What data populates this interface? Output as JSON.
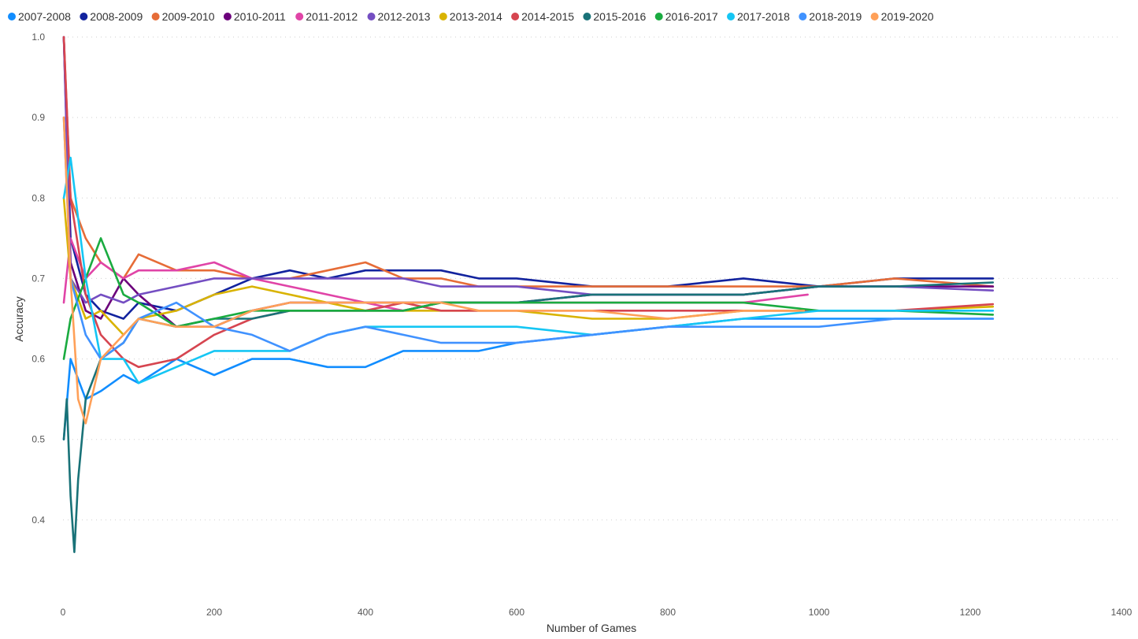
{
  "chart_data": {
    "type": "line",
    "xlabel": "Number of Games",
    "ylabel": "Accuracy",
    "xlim": [
      0,
      1400
    ],
    "ylim": [
      0.3,
      1.0
    ],
    "xticks": [
      0,
      200,
      400,
      600,
      800,
      1000,
      1200,
      1400
    ],
    "yticks": [
      0.4,
      0.5,
      0.6,
      0.7,
      0.8,
      0.9,
      1.0
    ],
    "ytick_labels": [
      "0.4",
      "0.5",
      "0.6",
      "0.7",
      "0.8",
      "0.9",
      "1.0"
    ],
    "grid": "horizontal-dotted",
    "legend_position": "top-left",
    "series": [
      {
        "name": "2007-2008",
        "color": "#118DFF",
        "x": [
          1,
          10,
          30,
          50,
          80,
          100,
          150,
          200,
          250,
          300,
          350,
          400,
          450,
          500,
          550,
          600,
          700,
          800,
          900,
          1000,
          1100,
          1230
        ],
        "y": [
          0.5,
          0.6,
          0.55,
          0.56,
          0.58,
          0.57,
          0.6,
          0.58,
          0.6,
          0.6,
          0.59,
          0.59,
          0.61,
          0.61,
          0.61,
          0.62,
          0.63,
          0.64,
          0.65,
          0.65,
          0.65,
          0.65
        ]
      },
      {
        "name": "2008-2009",
        "color": "#12239E",
        "x": [
          1,
          10,
          30,
          50,
          80,
          100,
          150,
          200,
          250,
          300,
          350,
          400,
          450,
          500,
          550,
          600,
          700,
          800,
          900,
          1000,
          1100,
          1230
        ],
        "y": [
          1.0,
          0.75,
          0.68,
          0.66,
          0.65,
          0.67,
          0.66,
          0.68,
          0.7,
          0.71,
          0.7,
          0.71,
          0.71,
          0.71,
          0.7,
          0.7,
          0.69,
          0.69,
          0.7,
          0.69,
          0.7,
          0.7
        ]
      },
      {
        "name": "2009-2010",
        "color": "#E66C37",
        "x": [
          1,
          10,
          30,
          50,
          80,
          100,
          150,
          200,
          250,
          300,
          350,
          400,
          450,
          500,
          550,
          600,
          700,
          800,
          900,
          1000,
          1100,
          1230
        ],
        "y": [
          1.0,
          0.8,
          0.75,
          0.72,
          0.7,
          0.73,
          0.71,
          0.71,
          0.7,
          0.7,
          0.71,
          0.72,
          0.7,
          0.7,
          0.69,
          0.69,
          0.69,
          0.69,
          0.69,
          0.69,
          0.7,
          0.69
        ]
      },
      {
        "name": "2010-2011",
        "color": "#6B007B",
        "x": [
          1,
          10,
          30,
          50,
          80,
          100,
          150,
          200,
          250,
          300,
          350,
          400,
          450,
          500,
          550,
          600,
          700,
          800,
          900,
          1000,
          1100,
          1230
        ],
        "y": [
          1.0,
          0.72,
          0.66,
          0.65,
          0.7,
          0.68,
          0.64,
          0.64,
          0.66,
          0.67,
          0.67,
          0.67,
          0.67,
          0.67,
          0.67,
          0.67,
          0.68,
          0.68,
          0.68,
          0.69,
          0.69,
          0.69
        ]
      },
      {
        "name": "2011-2012",
        "color": "#E044A7",
        "x": [
          1,
          10,
          30,
          50,
          80,
          100,
          150,
          200,
          250,
          300,
          350,
          400,
          450,
          500,
          550,
          600,
          700,
          800,
          900,
          985
        ],
        "y": [
          0.67,
          0.75,
          0.7,
          0.72,
          0.7,
          0.71,
          0.71,
          0.72,
          0.7,
          0.69,
          0.68,
          0.67,
          0.66,
          0.67,
          0.67,
          0.67,
          0.67,
          0.67,
          0.67,
          0.68
        ]
      },
      {
        "name": "2012-2013",
        "color": "#744EC2",
        "x": [
          1,
          10,
          30,
          50,
          80,
          100,
          150,
          200,
          250,
          300,
          350,
          400,
          450,
          500,
          550,
          600,
          700,
          800,
          900,
          1000,
          1100,
          1230
        ],
        "y": [
          1.0,
          0.7,
          0.67,
          0.68,
          0.67,
          0.68,
          0.69,
          0.7,
          0.7,
          0.7,
          0.7,
          0.7,
          0.7,
          0.69,
          0.69,
          0.69,
          0.68,
          0.68,
          0.68,
          0.69,
          0.69,
          0.685
        ]
      },
      {
        "name": "2013-2014",
        "color": "#D9B300",
        "x": [
          1,
          10,
          30,
          50,
          80,
          100,
          150,
          200,
          250,
          300,
          350,
          400,
          450,
          500,
          550,
          600,
          700,
          800,
          900,
          1000,
          1100,
          1230
        ],
        "y": [
          0.8,
          0.7,
          0.65,
          0.66,
          0.63,
          0.65,
          0.66,
          0.68,
          0.69,
          0.68,
          0.67,
          0.66,
          0.66,
          0.66,
          0.66,
          0.66,
          0.65,
          0.65,
          0.66,
          0.66,
          0.66,
          0.665
        ]
      },
      {
        "name": "2014-2015",
        "color": "#D64550",
        "x": [
          1,
          10,
          30,
          50,
          80,
          100,
          150,
          200,
          250,
          300,
          350,
          400,
          450,
          500,
          550,
          600,
          700,
          800,
          900,
          1000,
          1100,
          1230
        ],
        "y": [
          1.0,
          0.8,
          0.68,
          0.63,
          0.6,
          0.59,
          0.6,
          0.63,
          0.65,
          0.66,
          0.66,
          0.66,
          0.67,
          0.66,
          0.66,
          0.66,
          0.66,
          0.66,
          0.66,
          0.66,
          0.66,
          0.668
        ]
      },
      {
        "name": "2015-2016",
        "color": "#197278",
        "x": [
          1,
          5,
          10,
          15,
          20,
          30,
          50,
          80,
          100,
          150,
          200,
          250,
          300,
          350,
          400,
          450,
          500,
          550,
          600,
          700,
          800,
          900,
          1000,
          1100,
          1230
        ],
        "y": [
          0.5,
          0.55,
          0.43,
          0.36,
          0.45,
          0.55,
          0.6,
          0.62,
          0.65,
          0.64,
          0.65,
          0.65,
          0.66,
          0.66,
          0.66,
          0.66,
          0.67,
          0.67,
          0.67,
          0.68,
          0.68,
          0.68,
          0.69,
          0.69,
          0.695
        ]
      },
      {
        "name": "2016-2017",
        "color": "#1AAB40",
        "x": [
          1,
          10,
          30,
          50,
          80,
          100,
          150,
          200,
          250,
          300,
          350,
          400,
          450,
          500,
          550,
          600,
          700,
          800,
          900,
          1000,
          1100,
          1230
        ],
        "y": [
          0.6,
          0.65,
          0.7,
          0.75,
          0.68,
          0.67,
          0.64,
          0.65,
          0.66,
          0.66,
          0.66,
          0.66,
          0.66,
          0.67,
          0.67,
          0.67,
          0.67,
          0.67,
          0.67,
          0.66,
          0.66,
          0.655
        ]
      },
      {
        "name": "2017-2018",
        "color": "#15C6F4",
        "x": [
          1,
          10,
          30,
          50,
          80,
          100,
          150,
          200,
          250,
          300,
          350,
          400,
          450,
          500,
          550,
          600,
          700,
          800,
          900,
          1000,
          1100,
          1230
        ],
        "y": [
          0.8,
          0.85,
          0.7,
          0.6,
          0.6,
          0.57,
          0.59,
          0.61,
          0.61,
          0.61,
          0.63,
          0.64,
          0.64,
          0.64,
          0.64,
          0.64,
          0.63,
          0.64,
          0.65,
          0.66,
          0.66,
          0.66
        ]
      },
      {
        "name": "2018-2019",
        "color": "#4092FF",
        "x": [
          1,
          10,
          30,
          50,
          80,
          100,
          150,
          200,
          250,
          300,
          350,
          400,
          450,
          500,
          550,
          600,
          700,
          800,
          900,
          1000,
          1100,
          1230
        ],
        "y": [
          0.9,
          0.7,
          0.63,
          0.6,
          0.62,
          0.65,
          0.67,
          0.64,
          0.63,
          0.61,
          0.63,
          0.64,
          0.63,
          0.62,
          0.62,
          0.62,
          0.63,
          0.64,
          0.64,
          0.64,
          0.65,
          0.65
        ]
      },
      {
        "name": "2019-2020",
        "color": "#FFA058",
        "x": [
          1,
          10,
          20,
          30,
          50,
          80,
          100,
          150,
          200,
          250,
          300,
          350,
          400,
          450,
          500,
          550,
          600,
          700,
          800,
          900,
          980
        ],
        "y": [
          0.9,
          0.7,
          0.55,
          0.52,
          0.6,
          0.63,
          0.65,
          0.64,
          0.64,
          0.66,
          0.67,
          0.67,
          0.67,
          0.67,
          0.67,
          0.66,
          0.66,
          0.66,
          0.65,
          0.66,
          0.66
        ]
      }
    ]
  }
}
